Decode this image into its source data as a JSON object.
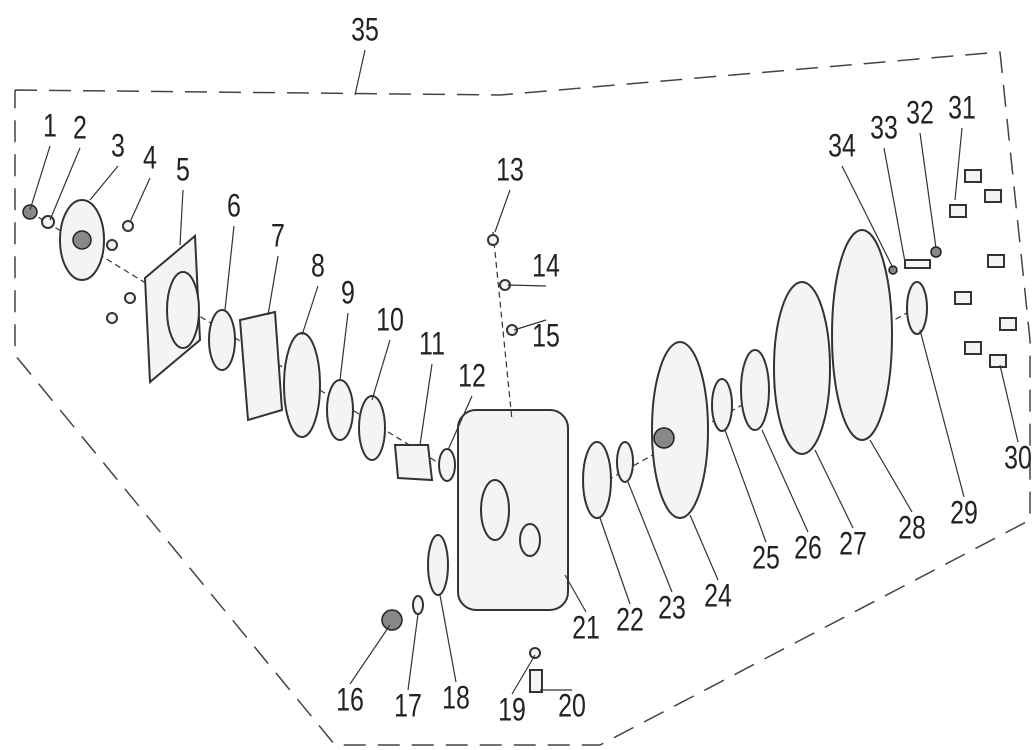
{
  "callouts": [
    "1",
    "2",
    "3",
    "4",
    "5",
    "6",
    "7",
    "8",
    "9",
    "10",
    "11",
    "12",
    "13",
    "14",
    "15",
    "16",
    "17",
    "18",
    "19",
    "20",
    "21",
    "22",
    "23",
    "24",
    "25",
    "26",
    "27",
    "28",
    "29",
    "30",
    "31",
    "32",
    "33",
    "34",
    "35"
  ]
}
